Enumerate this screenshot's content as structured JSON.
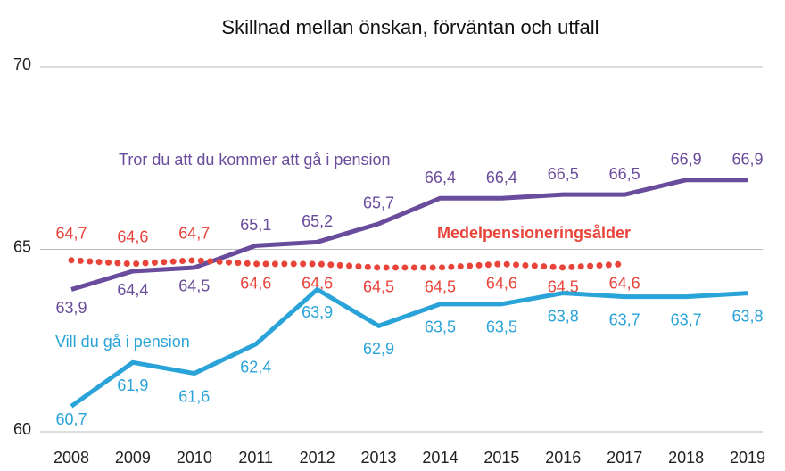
{
  "chart_data": {
    "type": "line",
    "title": "Skillnad mellan önskan, förväntan och utfall",
    "categories": [
      "2008",
      "2009",
      "2010",
      "2011",
      "2012",
      "2013",
      "2014",
      "2015",
      "2016",
      "2017",
      "2018",
      "2019"
    ],
    "ylim": [
      60,
      70
    ],
    "yticks": [
      60,
      65,
      70
    ],
    "grid": true,
    "series": [
      {
        "name": "Tror du att du kommer att gå i pension",
        "color": "#6a4c9c",
        "style": "solid",
        "values": [
          63.9,
          64.4,
          64.5,
          65.1,
          65.2,
          65.7,
          66.4,
          66.4,
          66.5,
          66.5,
          66.9,
          66.9
        ],
        "value_labels": [
          "63,9",
          "64,4",
          "64,5",
          "65,1",
          "65,2",
          "65,7",
          "66,4",
          "66,4",
          "66,5",
          "66,5",
          "66,9",
          "66,9"
        ]
      },
      {
        "name": "Medelpensioneringsålder",
        "color": "#e8443a",
        "style": "dotted",
        "values": [
          64.7,
          64.6,
          64.7,
          64.6,
          64.6,
          64.5,
          64.5,
          64.6,
          64.5,
          64.6,
          null,
          null
        ],
        "value_labels": [
          "64,7",
          "64,6",
          "64,7",
          "64,6",
          "64,6",
          "64,5",
          "64,5",
          "64,6",
          "64,5",
          "64,6",
          null,
          null
        ]
      },
      {
        "name": "Vill du gå i pension",
        "color": "#2aa3d8",
        "style": "solid",
        "values": [
          60.7,
          61.9,
          61.6,
          62.4,
          63.9,
          62.9,
          63.5,
          63.5,
          63.8,
          63.7,
          63.7,
          63.8
        ],
        "value_labels": [
          "60,7",
          "61,9",
          "61,6",
          "62,4",
          "63,9",
          "62,9",
          "63,5",
          "63,5",
          "63,8",
          "63,7",
          "63,7",
          "63,8"
        ]
      }
    ]
  }
}
